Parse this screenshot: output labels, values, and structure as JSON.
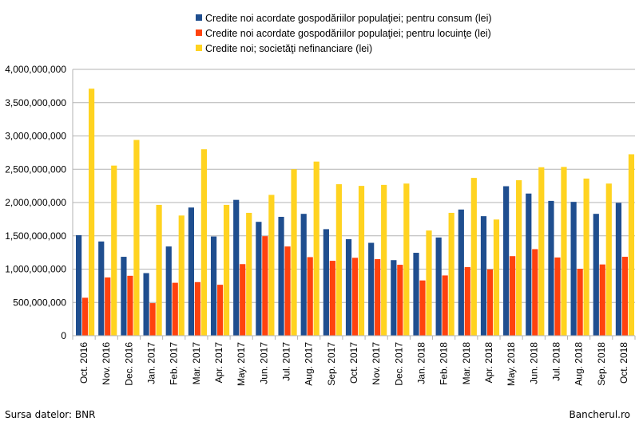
{
  "chart_data": {
    "type": "bar",
    "categories": [
      "Oct. 2016",
      "Nov. 2016",
      "Dec. 2016",
      "Jan. 2017",
      "Feb. 2017",
      "Mar. 2017",
      "Apr. 2017",
      "May. 2017",
      "Jun. 2017",
      "Jul. 2017",
      "Aug. 2017",
      "Sep. 2017",
      "Oct. 2017",
      "Nov. 2017",
      "Dec. 2017",
      "Jan. 2018",
      "Feb. 2018",
      "Mar. 2018",
      "Apr. 2018",
      "May. 2018",
      "Jun. 2018",
      "Jul. 2018",
      "Aug. 2018",
      "Sep. 2018",
      "Oct. 2018"
    ],
    "series": [
      {
        "name": "Credite noi acordate gospodăriilor populaţiei; pentru consum (lei)",
        "color": "#1f4e8f",
        "values": [
          1510000000,
          1415000000,
          1185000000,
          940000000,
          1340000000,
          1925000000,
          1490000000,
          2040000000,
          1710000000,
          1785000000,
          1830000000,
          1600000000,
          1450000000,
          1395000000,
          1135000000,
          1245000000,
          1475000000,
          1895000000,
          1795000000,
          2245000000,
          2135000000,
          2025000000,
          2010000000,
          1830000000,
          1995000000
        ]
      },
      {
        "name": "Credite noi acordate gospodăriilor populaţiei; pentru locuinţe (lei)",
        "color": "#ff420e",
        "values": [
          570000000,
          875000000,
          900000000,
          490000000,
          795000000,
          805000000,
          765000000,
          1075000000,
          1495000000,
          1340000000,
          1180000000,
          1125000000,
          1170000000,
          1150000000,
          1065000000,
          830000000,
          905000000,
          1030000000,
          995000000,
          1195000000,
          1300000000,
          1175000000,
          1005000000,
          1070000000,
          1185000000
        ]
      },
      {
        "name": "Credite noi; societăţi nefinanciare (lei)",
        "color": "#ffd320",
        "values": [
          3710000000,
          2555000000,
          2940000000,
          1965000000,
          1805000000,
          2800000000,
          1965000000,
          1845000000,
          2115000000,
          2500000000,
          2615000000,
          2275000000,
          2250000000,
          2265000000,
          2285000000,
          1580000000,
          1845000000,
          2370000000,
          1745000000,
          2335000000,
          2530000000,
          2535000000,
          2360000000,
          2285000000,
          2725000000
        ]
      }
    ],
    "yticks": [
      "0",
      "500,000,000",
      "1,000,000,000",
      "1,500,000,000",
      "2,000,000,000",
      "2,500,000,000",
      "3,000,000,000",
      "3,500,000,000",
      "4,000,000,000"
    ],
    "ylim": [
      0,
      4000000000
    ],
    "grid": true,
    "legend_position": "top"
  },
  "footer": {
    "source": "Sursa datelor: BNR",
    "brand": "Bancherul.ro"
  }
}
